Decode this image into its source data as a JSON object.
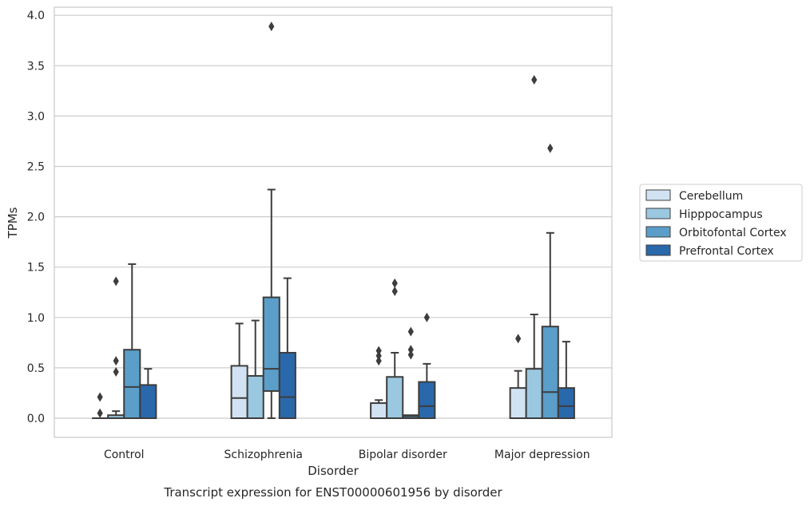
{
  "chart_data": {
    "type": "box",
    "caption": "Transcript expression for ENST00000601956 by disorder",
    "xlabel": "Disorder",
    "ylabel": "TPMs",
    "ylim": [
      -0.19,
      4.1
    ],
    "yticks": [
      "0.0",
      "0.5",
      "1.0",
      "1.5",
      "2.0",
      "2.5",
      "3.0",
      "3.5",
      "4.0"
    ],
    "grid": "horizontal",
    "legend_position": "right",
    "categories": [
      "Control",
      "Schizophrenia",
      "Bipolar disorder",
      "Major depression"
    ],
    "series": [
      {
        "name": "Cerebellum",
        "color": "#d1e2f2",
        "boxes": [
          {
            "whislo": 0.0,
            "q1": 0.0,
            "med": 0.0,
            "q3": 0.0,
            "whishi": 0.0,
            "fliers": [
              0.05,
              0.21
            ]
          },
          {
            "whislo": 0.0,
            "q1": 0.0,
            "med": 0.2,
            "q3": 0.52,
            "whishi": 0.94,
            "fliers": []
          },
          {
            "whislo": 0.0,
            "q1": 0.0,
            "med": 0.0,
            "q3": 0.15,
            "whishi": 0.18,
            "fliers": [
              0.57,
              0.62,
              0.67
            ]
          },
          {
            "whislo": 0.0,
            "q1": 0.0,
            "med": 0.0,
            "q3": 0.3,
            "whishi": 0.47,
            "fliers": [
              0.79
            ]
          }
        ]
      },
      {
        "name": "Hipppocampus",
        "color": "#9ac8e0",
        "boxes": [
          {
            "whislo": 0.0,
            "q1": 0.0,
            "med": 0.0,
            "q3": 0.03,
            "whishi": 0.07,
            "fliers": [
              0.46,
              0.57,
              1.36
            ]
          },
          {
            "whislo": 0.0,
            "q1": 0.0,
            "med": 0.0,
            "q3": 0.42,
            "whishi": 0.97,
            "fliers": []
          },
          {
            "whislo": 0.0,
            "q1": 0.0,
            "med": 0.0,
            "q3": 0.41,
            "whishi": 0.65,
            "fliers": [
              1.26,
              1.34
            ]
          },
          {
            "whislo": 0.0,
            "q1": 0.0,
            "med": 0.0,
            "q3": 0.49,
            "whishi": 1.03,
            "fliers": [
              3.36
            ]
          }
        ]
      },
      {
        "name": "Orbitofontal Cortex",
        "color": "#5a9ec9",
        "boxes": [
          {
            "whislo": 0.0,
            "q1": 0.0,
            "med": 0.31,
            "q3": 0.68,
            "whishi": 1.53,
            "fliers": []
          },
          {
            "whislo": 0.0,
            "q1": 0.27,
            "med": 0.49,
            "q3": 1.2,
            "whishi": 2.27,
            "fliers": [
              3.89
            ]
          },
          {
            "whislo": 0.0,
            "q1": 0.0,
            "med": 0.02,
            "q3": 0.03,
            "whishi": 0.03,
            "fliers": [
              0.63,
              0.68,
              0.86
            ]
          },
          {
            "whislo": 0.0,
            "q1": 0.0,
            "med": 0.26,
            "q3": 0.91,
            "whishi": 1.84,
            "fliers": [
              2.68
            ]
          }
        ]
      },
      {
        "name": "Prefrontal Cortex",
        "color": "#2a68ac",
        "boxes": [
          {
            "whislo": 0.0,
            "q1": 0.0,
            "med": 0.0,
            "q3": 0.33,
            "whishi": 0.49,
            "fliers": []
          },
          {
            "whislo": 0.0,
            "q1": 0.0,
            "med": 0.21,
            "q3": 0.65,
            "whishi": 1.39,
            "fliers": []
          },
          {
            "whislo": 0.0,
            "q1": 0.0,
            "med": 0.12,
            "q3": 0.36,
            "whishi": 0.54,
            "fliers": [
              1.0
            ]
          },
          {
            "whislo": 0.0,
            "q1": 0.0,
            "med": 0.12,
            "q3": 0.3,
            "whishi": 0.76,
            "fliers": []
          }
        ]
      }
    ]
  }
}
